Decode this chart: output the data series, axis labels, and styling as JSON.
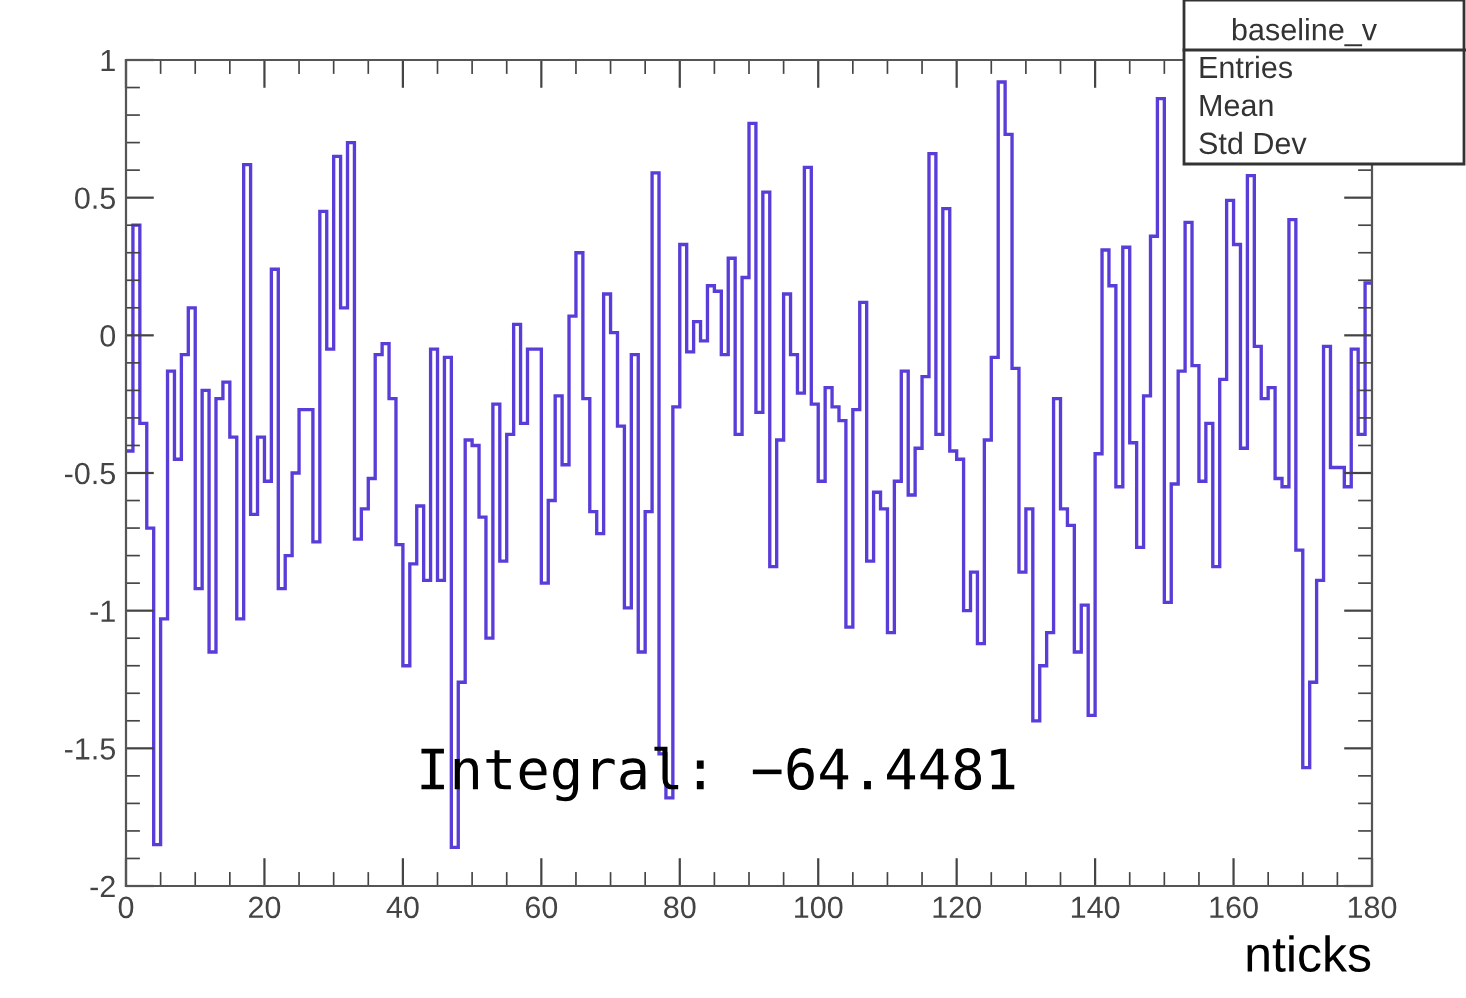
{
  "chart_data": {
    "type": "histogram",
    "xlabel": "nticks",
    "annotations": [
      "baseline_v",
      "Entries",
      "Mean",
      "Std Dev",
      "Integral: −64.4481"
    ],
    "bins": [
      0,
      1,
      2,
      3,
      4,
      5,
      6,
      7,
      8,
      9,
      10,
      11,
      12,
      13,
      14,
      15,
      16,
      17,
      18,
      19,
      20,
      21,
      22,
      23,
      24,
      25,
      26,
      27,
      28,
      29,
      30,
      31,
      32,
      33,
      34,
      35,
      36,
      37,
      38,
      39,
      40,
      41,
      42,
      43,
      44,
      45,
      46,
      47,
      48,
      49,
      50,
      51,
      52,
      53,
      54,
      55,
      56,
      57,
      58,
      59,
      60,
      61,
      62,
      63,
      64,
      65,
      66,
      67,
      68,
      69,
      70,
      71,
      72,
      73,
      74,
      75,
      76,
      77,
      78,
      79,
      80,
      81,
      82,
      83,
      84,
      85,
      86,
      87,
      88,
      89,
      90,
      91,
      92,
      93,
      94,
      95,
      96,
      97,
      98,
      99,
      100,
      101,
      102,
      103,
      104,
      105,
      106,
      107,
      108,
      109,
      110,
      111,
      112,
      113,
      114,
      115,
      116,
      117,
      118,
      119,
      120,
      121,
      122,
      123,
      124,
      125,
      126,
      127,
      128,
      129,
      130,
      131,
      132,
      133,
      134,
      135,
      136,
      137,
      138,
      139,
      140,
      141,
      142,
      143,
      144,
      145,
      146,
      147,
      148,
      149,
      150,
      151,
      152,
      153,
      154,
      155,
      156,
      157,
      158,
      159,
      160,
      161,
      162,
      163,
      164,
      165,
      166,
      167,
      168,
      169,
      170,
      171,
      172,
      173,
      174,
      175,
      176,
      177,
      178,
      179,
      180
    ],
    "values": [
      -0.42,
      0.4,
      -0.32,
      -0.7,
      -1.85,
      -1.03,
      -0.13,
      -0.45,
      -0.07,
      0.1,
      -0.92,
      -0.2,
      -1.15,
      -0.23,
      -0.17,
      -0.37,
      -1.03,
      0.62,
      -0.65,
      -0.37,
      -0.53,
      0.24,
      -0.92,
      -0.8,
      -0.5,
      -0.27,
      -0.27,
      -0.75,
      0.45,
      -0.05,
      0.65,
      0.1,
      0.7,
      -0.74,
      -0.63,
      -0.52,
      -0.07,
      -0.03,
      -0.23,
      -0.76,
      -1.2,
      -0.83,
      -0.62,
      -0.89,
      -0.05,
      -0.89,
      -0.08,
      -1.86,
      -1.26,
      -0.38,
      -0.4,
      -0.66,
      -1.1,
      -0.25,
      -0.82,
      -0.36,
      0.04,
      -0.32,
      -0.05,
      -0.05,
      -0.9,
      -0.6,
      -0.22,
      -0.47,
      0.07,
      0.3,
      -0.23,
      -0.64,
      -0.72,
      0.15,
      0.01,
      -0.33,
      -0.99,
      -0.07,
      -1.15,
      -0.64,
      0.59,
      -1.52,
      -1.68,
      -0.26,
      0.33,
      -0.06,
      0.05,
      -0.02,
      0.18,
      0.16,
      -0.07,
      0.28,
      -0.36,
      0.21,
      0.77,
      -0.28,
      0.52,
      -0.84,
      -0.38,
      0.15,
      -0.07,
      -0.21,
      0.61,
      -0.25,
      -0.53,
      -0.19,
      -0.26,
      -0.31,
      -1.06,
      -0.27,
      0.12,
      -0.82,
      -0.57,
      -0.63,
      -1.08,
      -0.53,
      -0.13,
      -0.58,
      -0.41,
      -0.15,
      0.66,
      -0.36,
      0.46,
      -0.42,
      -0.45,
      -1.0,
      -0.86,
      -1.12,
      -0.38,
      -0.08,
      0.92,
      0.73,
      -0.12,
      -0.86,
      -0.63,
      -1.4,
      -1.2,
      -1.08,
      -0.23,
      -0.63,
      -0.69,
      -1.15,
      -0.98,
      -1.38,
      -0.43,
      0.31,
      0.18,
      -0.55,
      0.32,
      -0.39,
      -0.77,
      -0.22,
      0.36,
      0.86,
      -0.97,
      -0.54,
      -0.13,
      0.41,
      -0.11,
      -0.53,
      -0.32,
      -0.84,
      -0.16,
      0.49,
      0.33,
      -0.41,
      0.58,
      -0.04,
      -0.23,
      -0.19,
      -0.52,
      -0.55,
      0.42,
      -0.78,
      -1.57,
      -1.26,
      -0.89,
      -0.04,
      -0.48,
      -0.48,
      -0.55,
      -0.05,
      -0.36,
      0.19
    ],
    "color": "#5a3cd8",
    "xlim": [
      0,
      180
    ],
    "xticks": [
      0,
      20,
      40,
      60,
      80,
      100,
      120,
      140,
      160,
      180
    ],
    "ylim": [
      -2,
      1
    ],
    "yticks": [
      -2,
      -1.5,
      -1,
      -0.5,
      0,
      0.5,
      1
    ],
    "grid": false
  }
}
